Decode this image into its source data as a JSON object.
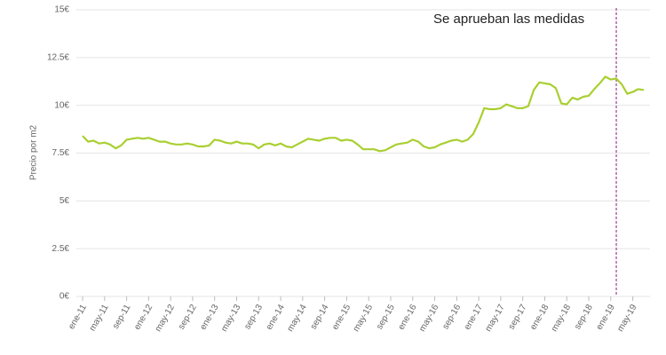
{
  "chart_data": {
    "type": "line",
    "y_label": "Precio por m2",
    "annotation": {
      "text": "Se aprueban las medidas",
      "category_index": 97,
      "color": "#9c3d8e"
    },
    "categories": [
      "ene-11",
      null,
      null,
      null,
      "may-11",
      null,
      null,
      null,
      "sep-11",
      null,
      null,
      null,
      "ene-12",
      null,
      null,
      null,
      "may-12",
      null,
      null,
      null,
      "sep-12",
      null,
      null,
      null,
      "ene-13",
      null,
      null,
      null,
      "may-13",
      null,
      null,
      null,
      "sep-13",
      null,
      null,
      null,
      "ene-14",
      null,
      null,
      null,
      "may-14",
      null,
      null,
      null,
      "sep-14",
      null,
      null,
      null,
      "ene-15",
      null,
      null,
      null,
      "may-15",
      null,
      null,
      null,
      "sep-15",
      null,
      null,
      null,
      "ene-16",
      null,
      null,
      null,
      "may-16",
      null,
      null,
      null,
      "sep-16",
      null,
      null,
      null,
      "ene-17",
      null,
      null,
      null,
      "may-17",
      null,
      null,
      null,
      "sep-17",
      null,
      null,
      null,
      "ene-18",
      null,
      null,
      null,
      "may-18",
      null,
      null,
      null,
      "sep-18",
      null,
      null,
      null,
      "ene-19",
      null,
      null,
      null,
      "may-19",
      null,
      null
    ],
    "series": [
      {
        "name": "Precio",
        "color": "#a9cf31",
        "values": [
          8.4,
          8.1,
          8.15,
          8.0,
          8.05,
          7.95,
          7.75,
          7.9,
          8.2,
          8.25,
          8.3,
          8.25,
          8.3,
          8.2,
          8.1,
          8.1,
          8.0,
          7.95,
          7.95,
          8.0,
          7.95,
          7.85,
          7.85,
          7.9,
          8.2,
          8.15,
          8.05,
          8.0,
          8.1,
          8.0,
          8.0,
          7.95,
          7.75,
          7.95,
          8.0,
          7.9,
          8.0,
          7.85,
          7.8,
          7.95,
          8.1,
          8.25,
          8.2,
          8.15,
          8.25,
          8.3,
          8.3,
          8.15,
          8.2,
          8.15,
          7.95,
          7.7,
          7.7,
          7.7,
          7.6,
          7.65,
          7.8,
          7.95,
          8.0,
          8.05,
          8.2,
          8.1,
          7.85,
          7.75,
          7.8,
          7.95,
          8.05,
          8.15,
          8.2,
          8.1,
          8.2,
          8.5,
          9.1,
          9.85,
          9.8,
          9.8,
          9.85,
          10.05,
          9.95,
          9.85,
          9.85,
          9.95,
          10.8,
          11.2,
          11.15,
          11.1,
          10.9,
          10.1,
          10.05,
          10.4,
          10.3,
          10.45,
          10.5,
          10.85,
          11.15,
          11.5,
          11.35,
          11.4,
          11.1,
          10.6,
          10.7,
          10.85,
          10.8
        ]
      }
    ],
    "ylim": [
      0,
      15
    ],
    "yticks": [
      {
        "value": 0,
        "label": "0€"
      },
      {
        "value": 2.5,
        "label": "2.5€"
      },
      {
        "value": 5,
        "label": "5€"
      },
      {
        "value": 7.5,
        "label": "7.5€"
      },
      {
        "value": 10,
        "label": "10€"
      },
      {
        "value": 12.5,
        "label": "12.5€"
      },
      {
        "value": 15,
        "label": "15€"
      }
    ],
    "grid": true
  }
}
